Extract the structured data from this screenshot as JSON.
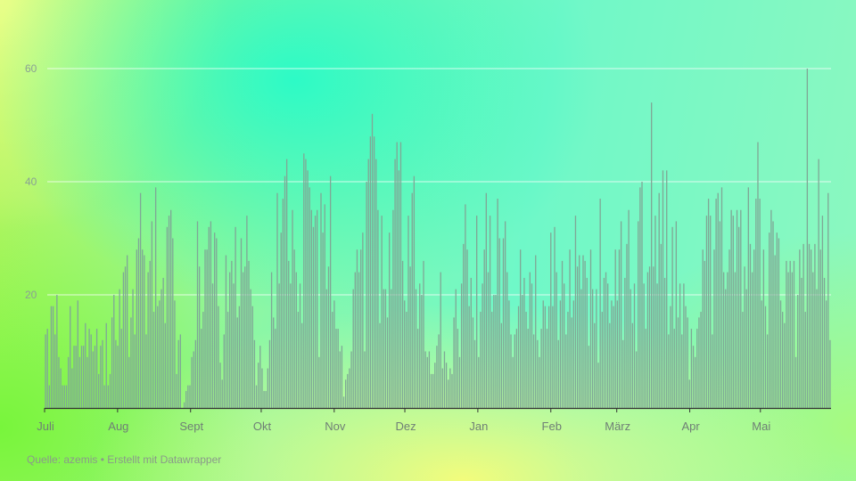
{
  "chart_data": {
    "type": "bar",
    "title": "",
    "xlabel": "",
    "ylabel": "",
    "ylim": [
      0,
      60
    ],
    "yticks": [
      20,
      40,
      60
    ],
    "grid": true,
    "bar_color": "#7fa896",
    "months": [
      "Juli",
      "Aug",
      "Sept",
      "Okt",
      "Nov",
      "Dez",
      "Jan",
      "Feb",
      "März",
      "Apr",
      "Mai"
    ],
    "values": [
      13,
      14,
      4,
      18,
      18,
      13,
      20,
      9,
      7,
      4,
      4,
      4,
      9,
      18,
      7,
      11,
      11,
      19,
      9,
      11,
      11,
      15,
      9,
      14,
      13,
      10,
      11,
      14,
      6,
      11,
      12,
      4,
      15,
      4,
      6,
      16,
      20,
      12,
      11,
      21,
      14,
      24,
      25,
      27,
      9,
      16,
      21,
      13,
      28,
      30,
      38,
      28,
      27,
      13,
      24,
      26,
      33,
      17,
      39,
      18,
      19,
      21,
      23,
      15,
      32,
      34,
      35,
      30,
      19,
      6,
      12,
      13,
      0,
      1,
      3,
      4,
      4,
      9,
      10,
      12,
      33,
      25,
      14,
      17,
      28,
      28,
      32,
      33,
      22,
      31,
      30,
      18,
      8,
      5,
      13,
      27,
      17,
      24,
      26,
      22,
      32,
      16,
      18,
      30,
      24,
      25,
      34,
      26,
      21,
      18,
      12,
      4,
      8,
      11,
      7,
      3,
      3,
      7,
      12,
      24,
      16,
      14,
      38,
      22,
      31,
      37,
      41,
      44,
      26,
      22,
      35,
      28,
      24,
      17,
      22,
      15,
      45,
      44,
      42,
      39,
      35,
      32,
      34,
      35,
      9,
      38,
      31,
      36,
      21,
      25,
      41,
      17,
      19,
      14,
      14,
      10,
      11,
      2,
      5,
      6,
      7,
      10,
      21,
      24,
      28,
      24,
      28,
      31,
      10,
      40,
      44,
      48,
      52,
      48,
      44,
      35,
      15,
      34,
      21,
      21,
      16,
      31,
      21,
      35,
      44,
      47,
      42,
      47,
      26,
      19,
      17,
      34,
      25,
      38,
      41,
      21,
      14,
      22,
      20,
      26,
      10,
      9,
      10,
      6,
      6,
      8,
      11,
      13,
      24,
      7,
      10,
      8,
      5,
      7,
      6,
      16,
      21,
      14,
      9,
      22,
      29,
      36,
      28,
      18,
      23,
      16,
      12,
      34,
      9,
      17,
      22,
      28,
      38,
      24,
      34,
      17,
      20,
      20,
      37,
      30,
      15,
      30,
      33,
      24,
      19,
      13,
      9,
      13,
      14,
      18,
      28,
      20,
      23,
      17,
      14,
      24,
      22,
      13,
      27,
      12,
      9,
      14,
      19,
      18,
      14,
      18,
      31,
      18,
      32,
      24,
      12,
      19,
      26,
      22,
      13,
      17,
      28,
      16,
      19,
      34,
      25,
      27,
      21,
      27,
      26,
      23,
      11,
      28,
      21,
      15,
      21,
      8,
      37,
      17,
      23,
      24,
      22,
      15,
      19,
      18,
      28,
      19,
      28,
      33,
      12,
      23,
      29,
      35,
      21,
      15,
      22,
      10,
      33,
      39,
      40,
      22,
      14,
      24,
      25,
      54,
      25,
      34,
      22,
      38,
      29,
      42,
      23,
      42,
      13,
      18,
      32,
      14,
      33,
      16,
      22,
      13,
      22,
      18,
      16,
      5,
      14,
      11,
      9,
      14,
      16,
      17,
      28,
      26,
      34,
      37,
      34,
      13,
      28,
      37,
      38,
      33,
      39,
      24,
      21,
      24,
      28,
      35,
      34,
      24,
      35,
      32,
      35,
      17,
      25,
      21,
      39,
      29,
      24,
      28,
      37,
      47,
      37,
      19,
      28,
      18,
      13,
      31,
      35,
      33,
      27,
      31,
      30,
      19,
      17,
      15,
      26,
      24,
      26,
      24,
      26,
      9,
      20,
      28,
      23,
      29,
      17,
      60,
      29,
      28,
      24,
      29,
      21,
      44,
      28,
      34,
      23,
      19,
      38,
      12
    ]
  },
  "footer": {
    "text": "Quelle: azemis • Erstellt mit Datawrapper"
  }
}
